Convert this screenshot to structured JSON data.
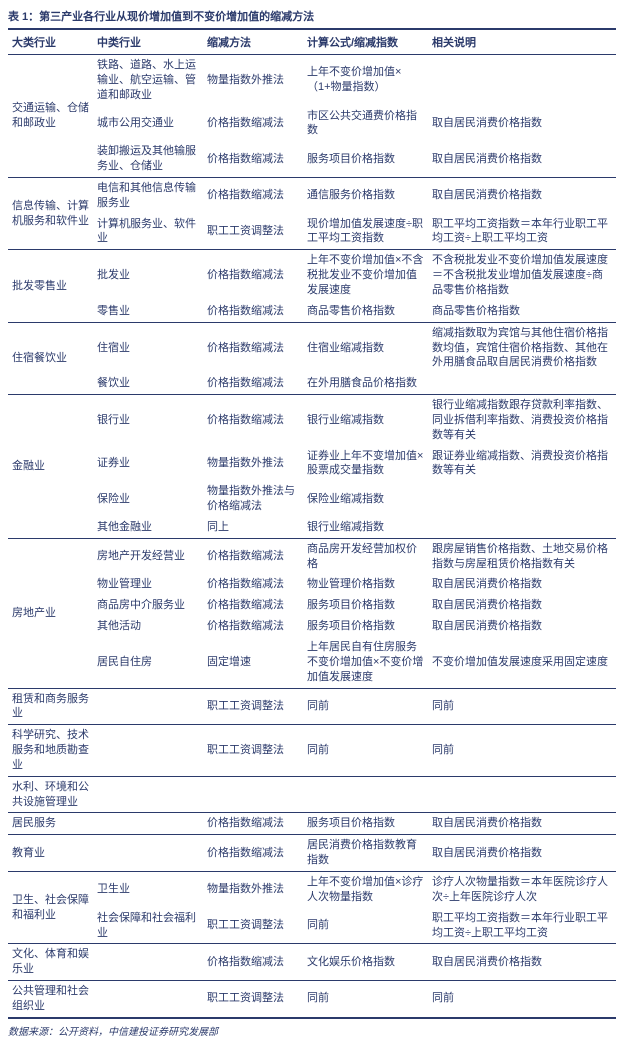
{
  "title": "表 1：第三产业各行业从现价增加值到不变价增加值的缩减方法",
  "columns": [
    "大类行业",
    "中类行业",
    "缩减方法",
    "计算公式/缩减指数",
    "相关说明"
  ],
  "source": "数据来源：公开资料，中信建投证券研究发展部",
  "colors": {
    "text": "#2b3a6b",
    "border": "#2b3a6b",
    "background": "#ffffff"
  },
  "groups": [
    {
      "major": "交通运输、仓储和邮政业",
      "rows": [
        {
          "mid": "铁路、道路、水上运输业、航空运输、管道和邮政业",
          "method": "物量指数外推法",
          "formula": "上年不变价增加值×（1+物量指数）",
          "note": ""
        },
        {
          "mid": "城市公用交通业",
          "method": "价格指数缩减法",
          "formula": "市区公共交通费价格指数",
          "note": "取自居民消费价格指数"
        },
        {
          "mid": "装卸搬运及其他输服务业、仓储业",
          "method": "价格指数缩减法",
          "formula": "服务项目价格指数",
          "note": "取自居民消费价格指数"
        }
      ]
    },
    {
      "major": "信息传输、计算机服务和软件业",
      "rows": [
        {
          "mid": "电信和其他信息传输服务业",
          "method": "价格指数缩减法",
          "formula": "通信服务价格指数",
          "note": "取自居民消费价格指数"
        },
        {
          "mid": "计算机服务业、软件业",
          "method": "职工工资调整法",
          "formula": "现价增加值发展速度÷职工平均工资指数",
          "note": "职工平均工资指数＝本年行业职工平均工资÷上职工平均工资"
        }
      ]
    },
    {
      "major": "批发零售业",
      "rows": [
        {
          "mid": "批发业",
          "method": "价格指数缩减法",
          "formula": "上年不变价增加值×不含税批发业不变价增加值发展速度",
          "note": "不含税批发业不变价增加值发展速度＝不含税批发业增加值发展速度÷商品零售价格指数"
        },
        {
          "mid": "零售业",
          "method": "价格指数缩减法",
          "formula": "商品零售价格指数",
          "note": "商品零售价格指数"
        }
      ]
    },
    {
      "major": "住宿餐饮业",
      "rows": [
        {
          "mid": "住宿业",
          "method": "价格指数缩减法",
          "formula": "住宿业缩减指数",
          "note": "缩减指数取为宾馆与其他住宿价格指数均值，宾馆住宿价格指数、其他在外用膳食品取自居民消费价格指数"
        },
        {
          "mid": "餐饮业",
          "method": "价格指数缩减法",
          "formula": "在外用膳食品价格指数",
          "note": ""
        }
      ]
    },
    {
      "major": "金融业",
      "rows": [
        {
          "mid": "银行业",
          "method": "价格指数缩减法",
          "formula": "银行业缩减指数",
          "note": "银行业缩减指数跟存贷款利率指数、同业拆借利率指数、消费投资价格指数等有关"
        },
        {
          "mid": "证券业",
          "method": "物量指数外推法",
          "formula": "证券业上年不变增加值×股票成交量指数",
          "note": "跟证券业缩减指数、消费投资价格指数等有关"
        },
        {
          "mid": "保险业",
          "method": "物量指数外推法与价格缩减法",
          "formula": "保险业缩减指数",
          "note": ""
        },
        {
          "mid": "其他金融业",
          "method": "同上",
          "formula": "银行业缩减指数",
          "note": ""
        }
      ]
    },
    {
      "major": "房地产业",
      "rows": [
        {
          "mid": "房地产开发经营业",
          "method": "价格指数缩减法",
          "formula": "商品房开发经营加权价格",
          "note": "跟房屋销售价格指数、土地交易价格指数与房屋租赁价格指数有关"
        },
        {
          "mid": "物业管理业",
          "method": "价格指数缩减法",
          "formula": "物业管理价格指数",
          "note": "取自居民消费价格指数"
        },
        {
          "mid": "商品房中介服务业",
          "method": "价格指数缩减法",
          "formula": "服务项目价格指数",
          "note": "取自居民消费价格指数"
        },
        {
          "mid": "其他活动",
          "method": "价格指数缩减法",
          "formula": "服务项目价格指数",
          "note": "取自居民消费价格指数"
        },
        {
          "mid": "居民自住房",
          "method": "固定增速",
          "formula": "上年居民自有住房服务不变价增加值×不变价增加值发展速度",
          "note": "不变价增加值发展速度采用固定速度"
        }
      ]
    },
    {
      "major": "租赁和商务服务业",
      "rows": [
        {
          "mid": "",
          "method": "职工工资调整法",
          "formula": "同前",
          "note": "同前"
        }
      ]
    },
    {
      "major": "科学研究、技术服务和地质勘查业",
      "rows": [
        {
          "mid": "",
          "method": "职工工资调整法",
          "formula": "同前",
          "note": "同前"
        }
      ]
    },
    {
      "major": "水利、环境和公共设施管理业",
      "rows": [
        {
          "mid": "",
          "method": "",
          "formula": "",
          "note": ""
        }
      ]
    },
    {
      "major": "居民服务",
      "rows": [
        {
          "mid": "",
          "method": "价格指数缩减法",
          "formula": "服务项目价格指数",
          "note": "取自居民消费价格指数"
        }
      ]
    },
    {
      "major": "教育业",
      "rows": [
        {
          "mid": "",
          "method": "价格指数缩减法",
          "formula": "居民消费价格指数教育指数",
          "note": "取自居民消费价格指数"
        }
      ]
    },
    {
      "major": "卫生、社会保障和福利业",
      "rows": [
        {
          "mid": "卫生业",
          "method": "物量指数外推法",
          "formula": "上年不变价增加值×诊疗人次物量指数",
          "note": "诊疗人次物量指数＝本年医院诊疗人次÷上年医院诊疗人次"
        },
        {
          "mid": "社会保障和社会福利业",
          "method": "职工工资调整法",
          "formula": "同前",
          "note": "职工平均工资指数＝本年行业职工平均工资÷上职工平均工资"
        }
      ]
    },
    {
      "major": "文化、体育和娱乐业",
      "rows": [
        {
          "mid": "",
          "method": "价格指数缩减法",
          "formula": "文化娱乐价格指数",
          "note": "取自居民消费价格指数"
        }
      ]
    },
    {
      "major": "公共管理和社会组织业",
      "rows": [
        {
          "mid": "",
          "method": "职工工资调整法",
          "formula": "同前",
          "note": "同前"
        }
      ]
    }
  ]
}
